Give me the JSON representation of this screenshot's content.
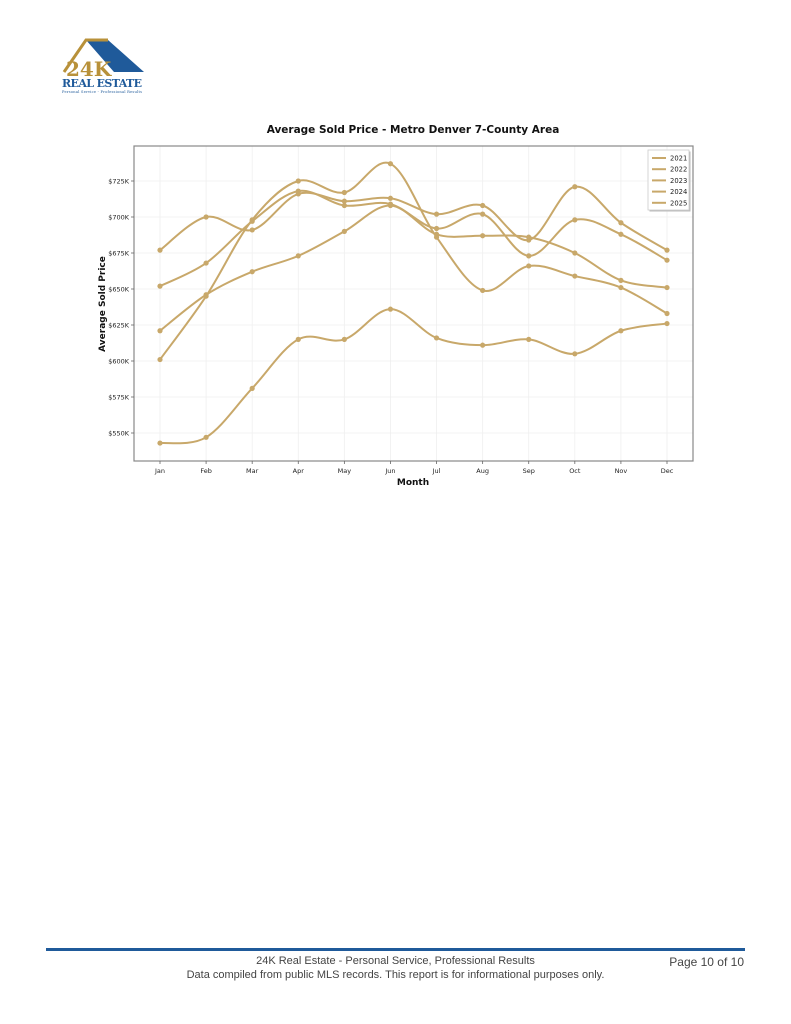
{
  "header": {
    "logo": {
      "brand_top": "24K",
      "brand_main": "REAL ESTATE",
      "tagline": "Personal Service - Professional Results",
      "colors": {
        "gold": "#b8913a",
        "blue": "#1f5a9a"
      }
    }
  },
  "chart_data": {
    "type": "line",
    "title": "Average Sold Price - Metro Denver 7-County Area",
    "xlabel": "Month",
    "ylabel": "Average Sold Price",
    "categories": [
      "Jan",
      "Feb",
      "Mar",
      "Apr",
      "May",
      "Jun",
      "Jul",
      "Aug",
      "Sep",
      "Oct",
      "Nov",
      "Dec"
    ],
    "ylim": [
      532,
      748
    ],
    "yticks": [
      550,
      575,
      600,
      625,
      650,
      675,
      700,
      725
    ],
    "ytick_labels": [
      "$550K",
      "$575K",
      "$600K",
      "$625K",
      "$650K",
      "$675K",
      "$700K",
      "$725K"
    ],
    "units": "thousands USD",
    "grid": true,
    "smooth": true,
    "legend_position": "upper right",
    "line_color": "#c8a86a",
    "series": [
      {
        "name": "2021",
        "values": [
          543,
          547,
          581,
          615,
          615,
          636,
          616,
          611,
          615,
          605,
          621,
          626
        ]
      },
      {
        "name": "2022",
        "values": [
          621,
          646,
          662,
          673,
          690,
          708,
          688,
          687,
          686,
          675,
          656,
          651
        ]
      },
      {
        "name": "2023",
        "values": [
          601,
          645,
          698,
          725,
          717,
          737,
          686,
          649,
          666,
          659,
          651,
          633
        ]
      },
      {
        "name": "2024",
        "values": [
          652,
          668,
          697,
          718,
          708,
          709,
          692,
          702,
          673,
          698,
          688,
          670
        ]
      },
      {
        "name": "2025",
        "values": [
          677,
          700,
          691,
          716,
          711,
          713,
          702,
          708,
          684,
          721,
          696,
          677
        ]
      }
    ]
  },
  "footer": {
    "line1": "24K Real Estate - Personal Service, Professional Results",
    "line2": "Data compiled from public MLS records. This report is for informational purposes only.",
    "page": "Page 10 of 10"
  }
}
